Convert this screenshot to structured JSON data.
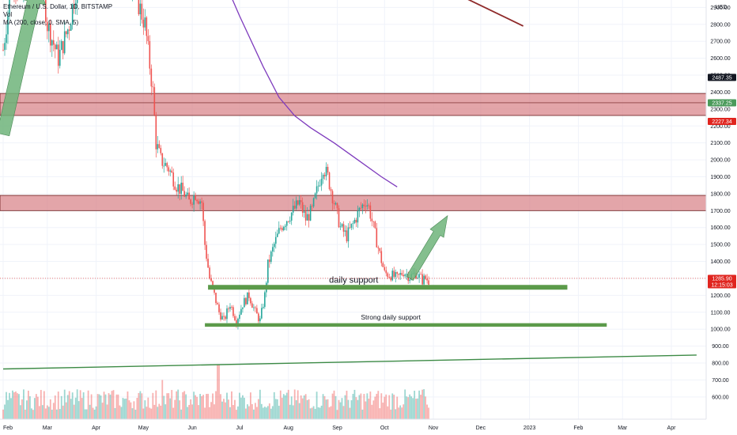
{
  "legend": {
    "symbol": "Ethereum / U.S. Dollar, 1D, BITSTAMP",
    "vol": "Vol",
    "ma": "MA (200, close, 0, SMA, 5)"
  },
  "chart_data": {
    "type": "candlestick",
    "currency_label": "USD",
    "y_ticks": [
      2900,
      2800,
      2700,
      2600,
      2500,
      2400,
      2300,
      2200,
      2100,
      2000,
      1900,
      1800,
      1700,
      1600,
      1500,
      1400,
      1300,
      1200,
      1100,
      1000,
      900,
      800,
      700,
      600
    ],
    "y_tick_labels": [
      "2900.00",
      "2800.00",
      "2700.00",
      "2600.00",
      "2500.00",
      "2400.00",
      "2300.00",
      "2200.00",
      "2100.00",
      "2000.00",
      "1900.00",
      "1800.00",
      "1700.00",
      "1600.00",
      "1500.00",
      "1400.00",
      "1300.00",
      "1200.00",
      "1100.00",
      "1000.00",
      "900.00",
      "800.00",
      "700.00",
      "600.00"
    ],
    "y_range": [
      540,
      3150
    ],
    "x_tick_labels": [
      "Feb",
      "Mar",
      "Apr",
      "May",
      "Jun",
      "Jul",
      "Aug",
      "Sep",
      "Oct",
      "Nov",
      "Dec",
      "2023",
      "Feb",
      "Mar",
      "Apr"
    ],
    "x_ticks_day": [
      0,
      28,
      59,
      89,
      120,
      150,
      181,
      212,
      242,
      273,
      303,
      334,
      365,
      393,
      424
    ],
    "x_range_day": [
      0,
      440
    ],
    "price_path": [
      [
        0,
        2650
      ],
      [
        6,
        3100
      ],
      [
        12,
        2950
      ],
      [
        18,
        3200
      ],
      [
        25,
        3050
      ],
      [
        28,
        2800
      ],
      [
        35,
        2600
      ],
      [
        42,
        2800
      ],
      [
        48,
        3100
      ],
      [
        55,
        3250
      ],
      [
        62,
        3200
      ],
      [
        70,
        3250
      ],
      [
        78,
        3150
      ],
      [
        85,
        2950
      ],
      [
        90,
        2800
      ],
      [
        95,
        2400
      ],
      [
        97,
        2100
      ],
      [
        100,
        2000
      ],
      [
        105,
        1950
      ],
      [
        110,
        1850
      ],
      [
        115,
        1800
      ],
      [
        118,
        1750
      ],
      [
        122,
        1800
      ],
      [
        126,
        1750
      ],
      [
        128,
        1500
      ],
      [
        131,
        1300
      ],
      [
        134,
        1200
      ],
      [
        137,
        1100
      ],
      [
        140,
        1050
      ],
      [
        144,
        1150
      ],
      [
        148,
        1050
      ],
      [
        152,
        1150
      ],
      [
        156,
        1200
      ],
      [
        160,
        1100
      ],
      [
        163,
        1050
      ],
      [
        166,
        1200
      ],
      [
        168,
        1380
      ],
      [
        172,
        1500
      ],
      [
        176,
        1600
      ],
      [
        180,
        1650
      ],
      [
        184,
        1700
      ],
      [
        188,
        1750
      ],
      [
        192,
        1650
      ],
      [
        196,
        1700
      ],
      [
        200,
        1850
      ],
      [
        203,
        1960
      ],
      [
        206,
        1900
      ],
      [
        210,
        1750
      ],
      [
        214,
        1600
      ],
      [
        218,
        1550
      ],
      [
        222,
        1620
      ],
      [
        226,
        1700
      ],
      [
        230,
        1760
      ],
      [
        232,
        1720
      ],
      [
        235,
        1600
      ],
      [
        238,
        1480
      ],
      [
        242,
        1330
      ],
      [
        246,
        1320
      ],
      [
        250,
        1300
      ],
      [
        254,
        1340
      ],
      [
        258,
        1310
      ],
      [
        262,
        1330
      ],
      [
        266,
        1290
      ],
      [
        268,
        1300
      ],
      [
        270,
        1286
      ]
    ],
    "ma_line": {
      "name": "MA 200",
      "points": [
        [
          136,
          3150
        ],
        [
          150,
          2850
        ],
        [
          165,
          2550
        ],
        [
          175,
          2370
        ],
        [
          185,
          2260
        ],
        [
          195,
          2190
        ],
        [
          210,
          2100
        ],
        [
          225,
          2000
        ],
        [
          240,
          1900
        ],
        [
          250,
          1840
        ]
      ]
    },
    "zones": [
      {
        "label": "resistance zone 1",
        "from": 2262,
        "to": 2392
      },
      {
        "label": "resistance zone 2",
        "from": 1700,
        "to": 1790
      }
    ],
    "supports": [
      {
        "label": "daily support",
        "price": 1247,
        "from_day": 130,
        "to_day": 358
      },
      {
        "label": "Strong daily support",
        "price": 1025,
        "from_day": 128,
        "to_day": 383
      }
    ],
    "trendlines": [
      {
        "name": "rising trendline",
        "from": [
          0,
          765
        ],
        "to": [
          440,
          847
        ]
      },
      {
        "name": "falling trendline",
        "from": [
          250,
          3150
        ],
        "to": [
          330,
          2790
        ]
      }
    ],
    "projection_arrow": {
      "from": [
        258,
        1300
      ],
      "to": [
        282,
        1670
      ]
    },
    "left_arrow": {
      "from": [
        0,
        2150
      ],
      "to": [
        22,
        3050
      ]
    },
    "volume_max": 120,
    "price_badges": [
      {
        "value": "2487.35",
        "price": 2487,
        "bg": "#131722"
      },
      {
        "value": "2337.25",
        "price": 2337,
        "bg": "#4a9a5a"
      },
      {
        "value": "2227.34",
        "price": 2227,
        "bg": "#e0251f"
      },
      {
        "value": "1285.90",
        "price": 1300,
        "bg": "#e0251f",
        "sub": "12:15:03"
      }
    ]
  },
  "colors": {
    "candle_up": "#26a69a",
    "candle_down": "#ef5350",
    "zone_fill": "#d9878c",
    "zone_stroke": "#6b1a1a",
    "support": "#5b9a4a",
    "ma": "#7e3bbd",
    "trend_green": "#3c8a45",
    "trend_red": "#8f2a2a",
    "arrow_fill": "#6fb47a"
  }
}
